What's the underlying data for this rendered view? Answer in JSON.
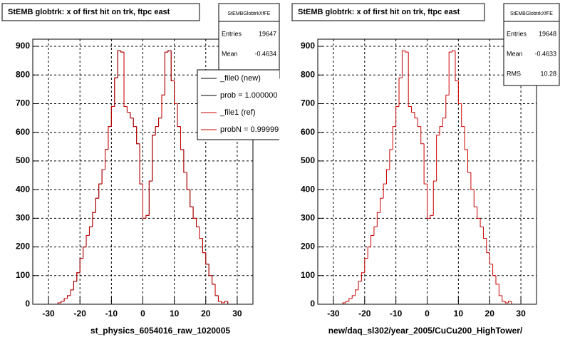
{
  "chart_data": [
    {
      "type": "histogram",
      "title": "StEMB globtrk: x of first hit on trk, ftpc east",
      "x_label": "st_physics_6054016_raw_1020005",
      "bins": [
        -35,
        -34,
        -33,
        -32,
        -31,
        -30,
        -29,
        -28,
        -27,
        -26,
        -25,
        -24,
        -23,
        -22,
        -21,
        -20,
        -19,
        -18,
        -17,
        -16,
        -15,
        -14,
        -13,
        -12,
        -11,
        -10,
        -9,
        -8,
        -7,
        -6,
        -5,
        -4,
        -3,
        -2,
        -1,
        0,
        1,
        2,
        3,
        4,
        5,
        6,
        7,
        8,
        9,
        10,
        11,
        12,
        13,
        14,
        15,
        16,
        17,
        18,
        19,
        20,
        21,
        22,
        23,
        24,
        25,
        26,
        27,
        28,
        29,
        30,
        31,
        32,
        33,
        34,
        35
      ],
      "series": [
        {
          "name": "_file0 (new)",
          "color": "#000000",
          "values": [
            0,
            0,
            0,
            0,
            0,
            0,
            0,
            0,
            5,
            10,
            20,
            30,
            50,
            80,
            110,
            160,
            200,
            240,
            270,
            320,
            370,
            420,
            470,
            540,
            620,
            690,
            790,
            885,
            880,
            690,
            670,
            650,
            620,
            560,
            420,
            300,
            310,
            430,
            590,
            620,
            650,
            730,
            880,
            885,
            780,
            700,
            620,
            540,
            460,
            400,
            340,
            300,
            270,
            230,
            180,
            140,
            100,
            70,
            30,
            10,
            5,
            10,
            0,
            0,
            0,
            0,
            0,
            0,
            0,
            0
          ]
        },
        {
          "name": "_file1 (ref)",
          "color": "#cc0000",
          "values": [
            0,
            0,
            0,
            0,
            0,
            0,
            0,
            0,
            5,
            10,
            20,
            30,
            50,
            80,
            110,
            160,
            200,
            240,
            270,
            320,
            370,
            420,
            470,
            540,
            620,
            690,
            790,
            885,
            880,
            690,
            670,
            650,
            620,
            560,
            420,
            300,
            310,
            430,
            590,
            620,
            650,
            730,
            880,
            885,
            780,
            700,
            620,
            540,
            460,
            400,
            340,
            300,
            270,
            230,
            180,
            140,
            100,
            70,
            30,
            10,
            5,
            10,
            0,
            0,
            0,
            0,
            0,
            0,
            0,
            0
          ]
        }
      ],
      "legend_notes": [
        {
          "text": "prob = 1.000000",
          "color": "#000000"
        },
        {
          "text": "probN = 0.99999",
          "color": "#cc0000"
        }
      ],
      "stats": {
        "title": "StEMBGlobtrkXfFE",
        "rows": [
          {
            "label": "Entries",
            "value": 19647
          },
          {
            "label": "Mean",
            "value": -0.4634
          }
        ]
      },
      "xlim": [
        -35,
        35
      ],
      "ylim": [
        0,
        925
      ],
      "xticks": [
        -30,
        -20,
        -10,
        0,
        10,
        20,
        30
      ],
      "yticks": [
        0,
        100,
        200,
        300,
        400,
        500,
        600,
        700,
        800,
        900
      ],
      "grid": true
    },
    {
      "type": "histogram",
      "title": "StEMB globtrk: x of first hit on trk, ftpc east",
      "x_label": "new/daq_sl302/year_2005/CuCu200_HighTower/",
      "bins": [
        -35,
        -34,
        -33,
        -32,
        -31,
        -30,
        -29,
        -28,
        -27,
        -26,
        -25,
        -24,
        -23,
        -22,
        -21,
        -20,
        -19,
        -18,
        -17,
        -16,
        -15,
        -14,
        -13,
        -12,
        -11,
        -10,
        -9,
        -8,
        -7,
        -6,
        -5,
        -4,
        -3,
        -2,
        -1,
        0,
        1,
        2,
        3,
        4,
        5,
        6,
        7,
        8,
        9,
        10,
        11,
        12,
        13,
        14,
        15,
        16,
        17,
        18,
        19,
        20,
        21,
        22,
        23,
        24,
        25,
        26,
        27,
        28,
        29,
        30,
        31,
        32,
        33,
        34,
        35
      ],
      "color": "#cc0000",
      "values": [
        0,
        0,
        0,
        0,
        0,
        0,
        0,
        0,
        5,
        10,
        20,
        30,
        50,
        80,
        110,
        160,
        200,
        240,
        270,
        320,
        370,
        420,
        470,
        540,
        620,
        690,
        790,
        885,
        880,
        690,
        670,
        650,
        620,
        560,
        420,
        300,
        310,
        430,
        590,
        620,
        650,
        730,
        880,
        885,
        780,
        700,
        620,
        540,
        460,
        400,
        340,
        300,
        270,
        230,
        180,
        140,
        100,
        70,
        30,
        10,
        5,
        10,
        0,
        0,
        0,
        0,
        0,
        0,
        0,
        0
      ],
      "stats": {
        "title": "StEMBGlobtrkXfFE",
        "rows": [
          {
            "label": "Entries",
            "value": 19648
          },
          {
            "label": "Mean",
            "value": -0.4633
          },
          {
            "label": "RMS",
            "value": 10.28
          }
        ]
      },
      "xlim": [
        -35,
        35
      ],
      "ylim": [
        0,
        925
      ],
      "xticks": [
        -30,
        -20,
        -10,
        0,
        10,
        20,
        30
      ],
      "yticks": [
        0,
        100,
        200,
        300,
        400,
        500,
        600,
        700,
        800,
        900
      ],
      "grid": true
    }
  ]
}
